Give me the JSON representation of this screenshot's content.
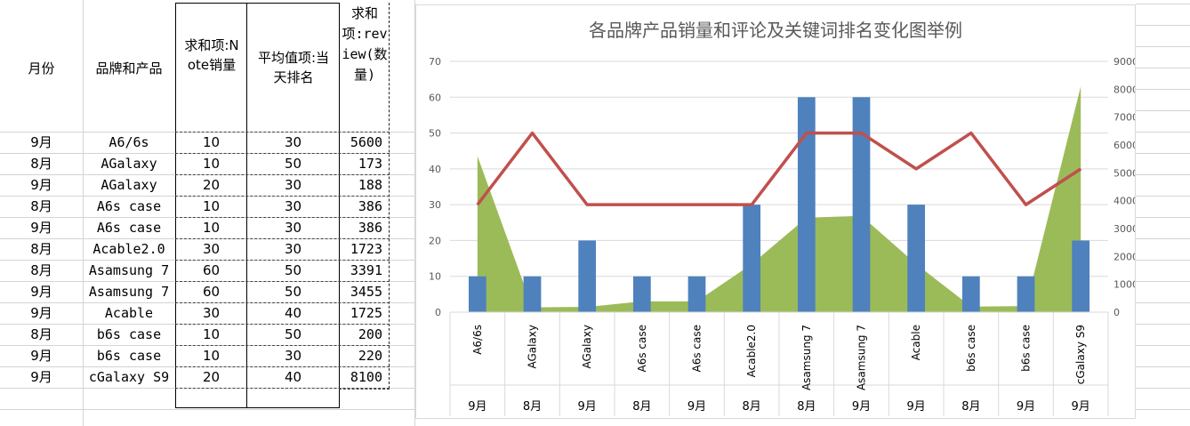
{
  "table": {
    "headers": {
      "month": "月份",
      "product": "品牌和产品",
      "note": "求和项:Note销量",
      "rank": "平均值项:当天排名",
      "review": "求和项:review(数量)"
    },
    "rows": [
      {
        "month": "9月",
        "product": "A6/6s",
        "note": "10",
        "rank": "30",
        "review": "5600"
      },
      {
        "month": "8月",
        "product": "AGalaxy",
        "note": "10",
        "rank": "50",
        "review": "173"
      },
      {
        "month": "9月",
        "product": "AGalaxy",
        "note": "20",
        "rank": "30",
        "review": "188"
      },
      {
        "month": "8月",
        "product": "A6s case",
        "note": "10",
        "rank": "30",
        "review": "386"
      },
      {
        "month": "9月",
        "product": "A6s case",
        "note": "10",
        "rank": "30",
        "review": "386"
      },
      {
        "month": "8月",
        "product": "Acable2.0",
        "note": "30",
        "rank": "30",
        "review": "1723"
      },
      {
        "month": "8月",
        "product": "Asamsung 7",
        "note": "60",
        "rank": "50",
        "review": "3391"
      },
      {
        "month": "9月",
        "product": "Asamsung 7",
        "note": "60",
        "rank": "50",
        "review": "3455"
      },
      {
        "month": "9月",
        "product": "Acable",
        "note": "30",
        "rank": "40",
        "review": "1725"
      },
      {
        "month": "8月",
        "product": "b6s case",
        "note": "10",
        "rank": "50",
        "review": "200"
      },
      {
        "month": "9月",
        "product": "b6s case",
        "note": "10",
        "rank": "30",
        "review": "220"
      },
      {
        "month": "9月",
        "product": "cGalaxy S9",
        "note": "20",
        "rank": "40",
        "review": "8100"
      }
    ]
  },
  "colors": {
    "bar": "#4f81bd",
    "line": "#c0504d",
    "area": "#9bbb59",
    "gridline": "#d9d9d9",
    "axis_text": "#595959"
  },
  "chart_data": {
    "type": "bar",
    "title": "各品牌产品销量和评论及关键词排名变化图举例",
    "categories": [
      "A6/6s",
      "AGalaxy",
      "AGalaxy",
      "A6s case",
      "A6s case",
      "Acable2.0",
      "Asamsung 7",
      "Asamsung 7",
      "Acable",
      "b6s case",
      "b6s case",
      "cGalaxy S9"
    ],
    "months": [
      "9月",
      "8月",
      "9月",
      "8月",
      "9月",
      "8月",
      "8月",
      "9月",
      "9月",
      "8月",
      "9月",
      "9月"
    ],
    "series": [
      {
        "type": "bar",
        "axis": "left",
        "values": [
          10,
          10,
          20,
          10,
          10,
          30,
          60,
          60,
          30,
          10,
          10,
          20
        ]
      },
      {
        "type": "line",
        "axis": "left",
        "values": [
          30,
          50,
          30,
          30,
          30,
          30,
          50,
          50,
          40,
          50,
          30,
          40
        ]
      },
      {
        "type": "area",
        "axis": "right",
        "values": [
          5600,
          173,
          188,
          386,
          386,
          1723,
          3391,
          3455,
          1725,
          200,
          220,
          8100
        ]
      }
    ],
    "y_left": {
      "ylim": [
        0,
        70
      ],
      "ticks": [
        "0",
        "10",
        "20",
        "30",
        "40",
        "50",
        "60",
        "70"
      ]
    },
    "y_right": {
      "ylim": [
        0,
        9000
      ],
      "ticks": [
        "0",
        "1000",
        "2000",
        "3000",
        "4000",
        "5000",
        "6000",
        "7000",
        "8000",
        "9000"
      ]
    },
    "grid": true
  }
}
